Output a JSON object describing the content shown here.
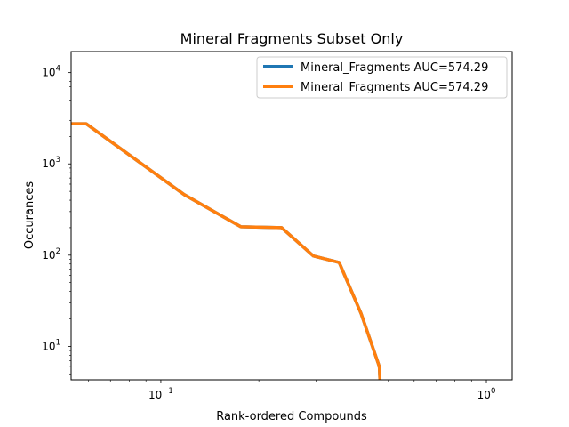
{
  "chart_data": {
    "type": "line",
    "title": "Mineral Fragments Subset Only",
    "xlabel": "Rank-ordered Compounds",
    "ylabel": "Occurances",
    "xscale": "log",
    "yscale": "log",
    "xlim": [
      0.053,
      1.2
    ],
    "ylim": [
      4.3,
      17000
    ],
    "grid": false,
    "legend_position": "top-right",
    "x_ticks": [
      {
        "value": 0.1,
        "base": "10",
        "exp": "−1"
      },
      {
        "value": 1,
        "base": "10",
        "exp": "0"
      }
    ],
    "y_ticks": [
      {
        "value": 10,
        "base": "10",
        "exp": "1"
      },
      {
        "value": 100,
        "base": "10",
        "exp": "2"
      },
      {
        "value": 1000,
        "base": "10",
        "exp": "3"
      },
      {
        "value": 10000,
        "base": "10",
        "exp": "4"
      }
    ],
    "series": [
      {
        "name": "Mineral_Fragments AUC=574.29",
        "color": "#1f77b4",
        "x": [
          0.053,
          0.059,
          0.118,
          0.176,
          0.235,
          0.294,
          0.353,
          0.412,
          0.469,
          0.471
        ],
        "y": [
          2750,
          2750,
          460,
          205,
          200,
          98,
          83,
          23,
          6,
          4.3
        ]
      },
      {
        "name": "Mineral_Fragments AUC=574.29",
        "color": "#ff7f0e",
        "x": [
          0.053,
          0.059,
          0.118,
          0.176,
          0.235,
          0.294,
          0.353,
          0.412,
          0.469,
          0.471
        ],
        "y": [
          2750,
          2750,
          460,
          205,
          200,
          98,
          83,
          23,
          6,
          4.3
        ]
      }
    ]
  }
}
